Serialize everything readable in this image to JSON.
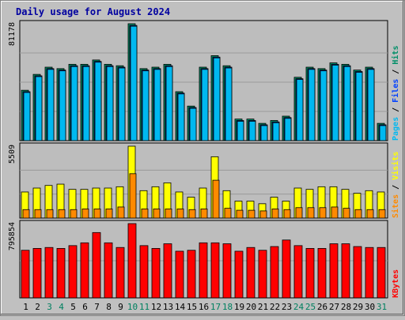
{
  "colors": {
    "background": "#c0c0c0",
    "plot_background": "#bdbdbd",
    "grid": "#9a9a9a",
    "title": "#0000a0",
    "hits": "#008f68",
    "files": "#0040ff",
    "pages": "#00b8f0",
    "visits": "#ffff00",
    "sites": "#ff8a00",
    "kbytes": "#ff0000",
    "day_weekday": "#000000",
    "day_weekend": "#008060"
  },
  "chart_data": {
    "type": "bar",
    "title": "Daily usage for August 2024",
    "days": [
      "1",
      "2",
      "3",
      "4",
      "5",
      "6",
      "7",
      "8",
      "9",
      "10",
      "11",
      "12",
      "13",
      "14",
      "15",
      "16",
      "17",
      "18",
      "19",
      "20",
      "21",
      "22",
      "23",
      "24",
      "25",
      "26",
      "27",
      "28",
      "29",
      "30",
      "31"
    ],
    "weekend_days": [
      "3",
      "4",
      "10",
      "11",
      "17",
      "18",
      "24",
      "25",
      "31"
    ],
    "panels": [
      {
        "name": "hits-files-pages",
        "max_label": "81178",
        "ylim": [
          0,
          81178
        ],
        "legend": [
          {
            "text": "Pages",
            "color": "#00b8f0"
          },
          {
            "text": " / ",
            "color": "#000000"
          },
          {
            "text": "Files",
            "color": "#0040ff"
          },
          {
            "text": " / ",
            "color": "#000000"
          },
          {
            "text": "Hits",
            "color": "#008f68"
          }
        ],
        "series": [
          {
            "name": "Hits",
            "values": [
              35000,
              46000,
              51000,
              50000,
              53000,
              53000,
              56000,
              53000,
              52000,
              81178,
              50000,
              51000,
              53000,
              34000,
              24000,
              51000,
              59000,
              52000,
              15000,
              15000,
              12000,
              14000,
              17000,
              44000,
              51000,
              50000,
              54000,
              53000,
              49000,
              51000,
              12000
            ]
          },
          {
            "name": "Files",
            "values": [
              34000,
              45000,
              50000,
              49000,
              52000,
              52000,
              55000,
              52000,
              51000,
              80000,
              49000,
              50000,
              52000,
              33000,
              23000,
              50000,
              58000,
              51000,
              14000,
              14000,
              11000,
              13000,
              16000,
              43000,
              50000,
              49000,
              53000,
              52000,
              48000,
              50000,
              11000
            ]
          },
          {
            "name": "Pages",
            "values": [
              34000,
              45000,
              50000,
              49000,
              52000,
              52000,
              55000,
              52000,
              51000,
              80000,
              49000,
              50000,
              52000,
              33000,
              23000,
              50000,
              58000,
              51000,
              14000,
              14000,
              11000,
              13000,
              16000,
              43000,
              50000,
              49000,
              53000,
              52000,
              48000,
              50000,
              11000
            ]
          }
        ]
      },
      {
        "name": "visits-sites",
        "max_label": "5509",
        "ylim": [
          0,
          5509
        ],
        "legend": [
          {
            "text": "Sites",
            "color": "#ff8a00"
          },
          {
            "text": " / ",
            "color": "#000000"
          },
          {
            "text": "Visits",
            "color": "#ffff00"
          }
        ],
        "series": [
          {
            "name": "Visits",
            "values": [
              2000,
              2300,
              2500,
              2600,
              2200,
              2200,
              2300,
              2300,
              2400,
              5509,
              2100,
              2400,
              2700,
              2000,
              1600,
              2300,
              4700,
              2100,
              1300,
              1300,
              1100,
              1600,
              1300,
              2300,
              2200,
              2400,
              2400,
              2200,
              1900,
              2100,
              2000
            ]
          },
          {
            "name": "Sites",
            "values": [
              650,
              650,
              650,
              650,
              650,
              700,
              700,
              700,
              850,
              3400,
              700,
              700,
              700,
              700,
              650,
              700,
              2900,
              750,
              600,
              600,
              550,
              700,
              650,
              800,
              800,
              800,
              850,
              750,
              650,
              650,
              650
            ]
          }
        ]
      },
      {
        "name": "kbytes",
        "max_label": "795854",
        "ylim": [
          0,
          795854
        ],
        "legend": [
          {
            "text": "KBytes",
            "color": "#ff0000"
          }
        ],
        "series": [
          {
            "name": "KBytes",
            "values": [
              510000,
              530000,
              540000,
              530000,
              560000,
              590000,
              700000,
              590000,
              540000,
              795854,
              560000,
              530000,
              580000,
              500000,
              510000,
              590000,
              590000,
              580000,
              500000,
              540000,
              510000,
              550000,
              620000,
              560000,
              530000,
              530000,
              580000,
              580000,
              550000,
              540000,
              540000
            ]
          }
        ]
      }
    ]
  }
}
